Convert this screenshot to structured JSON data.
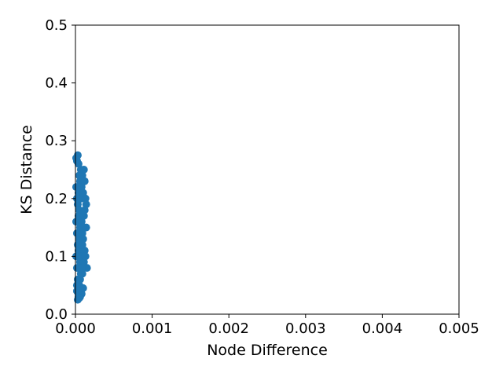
{
  "chart_data": {
    "type": "scatter",
    "title": "",
    "xlabel": "Node Difference",
    "ylabel": "KS Distance",
    "xlim": [
      0.0,
      0.005
    ],
    "ylim": [
      0.0,
      0.5
    ],
    "xticks": [
      "0.000",
      "0.001",
      "0.002",
      "0.003",
      "0.004",
      "0.005"
    ],
    "yticks": [
      "0.0",
      "0.1",
      "0.2",
      "0.3",
      "0.4",
      "0.5"
    ],
    "grid": false,
    "legend": "none",
    "marker_color": "#1f77b4",
    "x": [
      1e-05,
      1e-05,
      1e-05,
      1e-05,
      2e-05,
      2e-05,
      2e-05,
      2e-05,
      2e-05,
      3e-05,
      3e-05,
      3e-05,
      3e-05,
      4e-05,
      4e-05,
      4e-05,
      4e-05,
      4e-05,
      5e-05,
      5e-05,
      5e-05,
      5e-05,
      6e-05,
      6e-05,
      6e-05,
      6e-05,
      7e-05,
      7e-05,
      7e-05,
      7e-05,
      8e-05,
      8e-05,
      8e-05,
      8e-05,
      9e-05,
      9e-05,
      9e-05,
      0.0001,
      0.0001,
      0.0001,
      0.00011,
      0.00011,
      0.00011,
      0.00012,
      0.00012,
      0.00013,
      0.00013,
      0.00014,
      0.00014,
      0.00015,
      3e-05,
      4e-05,
      5e-05,
      2e-05,
      6e-05,
      7e-05,
      8e-05,
      9e-05,
      0.0001,
      0.00012
    ],
    "y": [
      0.27,
      0.22,
      0.16,
      0.1,
      0.265,
      0.2,
      0.14,
      0.08,
      0.04,
      0.275,
      0.19,
      0.12,
      0.06,
      0.26,
      0.21,
      0.17,
      0.11,
      0.035,
      0.24,
      0.18,
      0.13,
      0.05,
      0.23,
      0.15,
      0.09,
      0.03,
      0.25,
      0.2,
      0.12,
      0.04,
      0.22,
      0.16,
      0.1,
      0.035,
      0.24,
      0.14,
      0.07,
      0.21,
      0.13,
      0.045,
      0.25,
      0.17,
      0.09,
      0.23,
      0.11,
      0.2,
      0.1,
      0.19,
      0.15,
      0.08,
      0.025,
      0.03,
      0.028,
      0.05,
      0.06,
      0.07,
      0.08,
      0.12,
      0.15,
      0.18
    ]
  }
}
